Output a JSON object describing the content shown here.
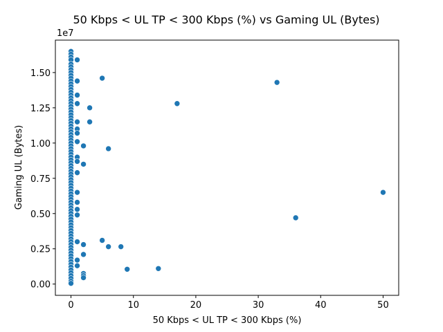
{
  "chart_data": {
    "type": "scatter",
    "title": "50 Kbps < UL TP < 300 Kbps (%) vs Gaming UL (Bytes)",
    "xlabel": "50 Kbps < UL TP < 300 Kbps (%)",
    "ylabel": "Gaming UL (Bytes)",
    "y_offset_label": "1e7",
    "xlim": [
      -2.5,
      52.5
    ],
    "ylim": [
      -800000,
      17300000
    ],
    "xticks": [
      0,
      10,
      20,
      30,
      40,
      50
    ],
    "xtick_labels": [
      "0",
      "10",
      "20",
      "30",
      "40",
      "50"
    ],
    "yticks": [
      0,
      2500000,
      5000000,
      7500000,
      10000000,
      12500000,
      15000000
    ],
    "ytick_labels": [
      "0.00",
      "0.25",
      "0.50",
      "0.75",
      "1.00",
      "1.25",
      "1.50"
    ],
    "grid": false,
    "color": "#1f77b4",
    "points": [
      [
        0,
        16500000
      ],
      [
        0,
        16300000
      ],
      [
        0,
        16100000
      ],
      [
        0,
        15900000
      ],
      [
        0,
        15600000
      ],
      [
        0,
        15400000
      ],
      [
        0,
        15200000
      ],
      [
        0,
        15000000
      ],
      [
        0,
        14800000
      ],
      [
        0,
        14600000
      ],
      [
        0,
        14400000
      ],
      [
        0,
        14200000
      ],
      [
        0,
        14000000
      ],
      [
        0,
        13800000
      ],
      [
        0,
        13600000
      ],
      [
        0,
        13400000
      ],
      [
        0,
        13200000
      ],
      [
        0,
        13000000
      ],
      [
        0,
        12800000
      ],
      [
        0,
        12600000
      ],
      [
        0,
        12400000
      ],
      [
        0,
        12200000
      ],
      [
        0,
        12000000
      ],
      [
        0,
        11800000
      ],
      [
        0,
        11600000
      ],
      [
        0,
        11400000
      ],
      [
        0,
        11200000
      ],
      [
        0,
        11000000
      ],
      [
        0,
        10800000
      ],
      [
        0,
        10600000
      ],
      [
        0,
        10400000
      ],
      [
        0,
        10200000
      ],
      [
        0,
        10000000
      ],
      [
        0,
        9800000
      ],
      [
        0,
        9600000
      ],
      [
        0,
        9400000
      ],
      [
        0,
        9200000
      ],
      [
        0,
        9000000
      ],
      [
        0,
        8800000
      ],
      [
        0,
        8600000
      ],
      [
        0,
        8400000
      ],
      [
        0,
        8200000
      ],
      [
        0,
        8000000
      ],
      [
        0,
        7800000
      ],
      [
        0,
        7600000
      ],
      [
        0,
        7400000
      ],
      [
        0,
        7200000
      ],
      [
        0,
        7000000
      ],
      [
        0,
        6800000
      ],
      [
        0,
        6600000
      ],
      [
        0,
        6400000
      ],
      [
        0,
        6200000
      ],
      [
        0,
        6000000
      ],
      [
        0,
        5800000
      ],
      [
        0,
        5600000
      ],
      [
        0,
        5400000
      ],
      [
        0,
        5200000
      ],
      [
        0,
        5000000
      ],
      [
        0,
        4800000
      ],
      [
        0,
        4600000
      ],
      [
        0,
        4400000
      ],
      [
        0,
        4200000
      ],
      [
        0,
        4000000
      ],
      [
        0,
        3800000
      ],
      [
        0,
        3600000
      ],
      [
        0,
        3400000
      ],
      [
        0,
        3200000
      ],
      [
        0,
        3000000
      ],
      [
        0,
        2800000
      ],
      [
        0,
        2600000
      ],
      [
        0,
        2400000
      ],
      [
        0,
        2200000
      ],
      [
        0,
        2000000
      ],
      [
        0,
        1800000
      ],
      [
        0,
        1600000
      ],
      [
        0,
        1400000
      ],
      [
        0,
        1200000
      ],
      [
        0,
        1000000
      ],
      [
        0,
        800000
      ],
      [
        0,
        600000
      ],
      [
        0,
        400000
      ],
      [
        0,
        200000
      ],
      [
        0,
        50000
      ],
      [
        1,
        15900000
      ],
      [
        1,
        14400000
      ],
      [
        1,
        13400000
      ],
      [
        1,
        12800000
      ],
      [
        1,
        11500000
      ],
      [
        1,
        11000000
      ],
      [
        1,
        10700000
      ],
      [
        1,
        10100000
      ],
      [
        1,
        9000000
      ],
      [
        1,
        8700000
      ],
      [
        1,
        7900000
      ],
      [
        1,
        6500000
      ],
      [
        1,
        5800000
      ],
      [
        1,
        5300000
      ],
      [
        1,
        4900000
      ],
      [
        1,
        3000000
      ],
      [
        1,
        1700000
      ],
      [
        1,
        1300000
      ],
      [
        2,
        9800000
      ],
      [
        2,
        8500000
      ],
      [
        2,
        2800000
      ],
      [
        2,
        2100000
      ],
      [
        2,
        750000
      ],
      [
        2,
        600000
      ],
      [
        2,
        450000
      ],
      [
        3,
        12500000
      ],
      [
        3,
        11500000
      ],
      [
        5,
        14600000
      ],
      [
        5,
        3100000
      ],
      [
        6,
        9600000
      ],
      [
        6,
        2650000
      ],
      [
        8,
        2650000
      ],
      [
        9,
        1050000
      ],
      [
        14,
        1100000
      ],
      [
        17,
        12800000
      ],
      [
        33,
        14300000
      ],
      [
        36,
        4700000
      ],
      [
        50,
        6500000
      ]
    ]
  }
}
